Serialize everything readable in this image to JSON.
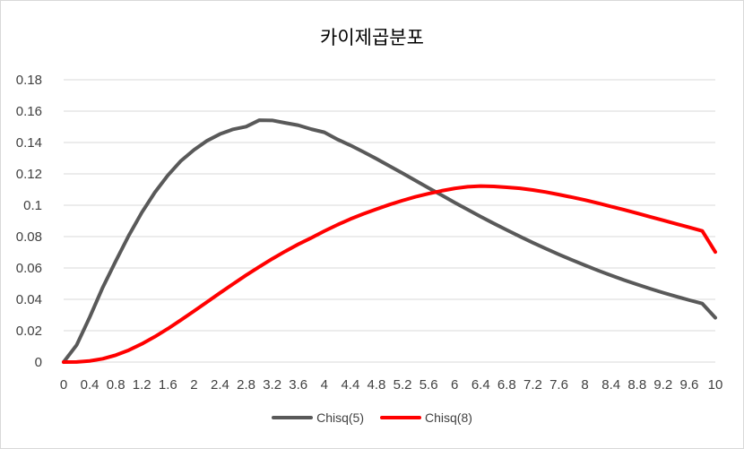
{
  "chart_data": {
    "type": "line",
    "title": "카이제곱분포",
    "xlabel": "",
    "ylabel": "",
    "x": [
      0,
      0.2,
      0.4,
      0.6,
      0.8,
      1,
      1.2,
      1.4,
      1.6,
      1.8,
      2,
      2.2,
      2.4,
      2.6,
      2.8,
      3,
      3.2,
      3.4,
      3.6,
      3.8,
      4,
      4.2,
      4.4,
      4.6,
      4.8,
      5,
      5.2,
      5.4,
      5.6,
      5.8,
      6,
      6.2,
      6.4,
      6.6,
      6.8,
      7,
      7.2,
      7.4,
      7.6,
      7.8,
      8,
      8.2,
      8.4,
      8.6,
      8.8,
      9,
      9.2,
      9.4,
      9.6,
      9.8,
      10
    ],
    "x_tick_labels": [
      "0",
      "0.4",
      "0.8",
      "1.2",
      "1.6",
      "2",
      "2.4",
      "2.8",
      "3.2",
      "3.6",
      "4",
      "4.4",
      "4.8",
      "5.2",
      "5.6",
      "6",
      "6.4",
      "6.8",
      "7.2",
      "7.6",
      "8",
      "8.4",
      "8.8",
      "9.2",
      "9.6",
      "10"
    ],
    "y_tick_labels": [
      "0",
      "0.02",
      "0.04",
      "0.06",
      "0.08",
      "0.1",
      "0.12",
      "0.14",
      "0.16",
      "0.18"
    ],
    "ylim": [
      0,
      0.18
    ],
    "grid": "horizontal",
    "legend_position": "bottom",
    "series": [
      {
        "name": "Chisq(5)",
        "color": "#595959",
        "values": [
          0,
          0.0109,
          0.0286,
          0.0476,
          0.0644,
          0.0807,
          0.0954,
          0.1082,
          0.1191,
          0.1283,
          0.1353,
          0.1411,
          0.1454,
          0.1484,
          0.1501,
          0.1542,
          0.1541,
          0.1525,
          0.151,
          0.1485,
          0.1465,
          0.142,
          0.1382,
          0.134,
          0.1296,
          0.125,
          0.1204,
          0.1157,
          0.111,
          0.1064,
          0.1017,
          0.0972,
          0.0927,
          0.0884,
          0.0842,
          0.0801,
          0.0761,
          0.0723,
          0.0686,
          0.0651,
          0.0617,
          0.0584,
          0.0553,
          0.0523,
          0.0495,
          0.0468,
          0.0442,
          0.0418,
          0.0395,
          0.0373,
          0.0283
        ]
      },
      {
        "name": "Chisq(8)",
        "color": "#ff0000",
        "values": [
          0,
          0.0001,
          0.0007,
          0.0021,
          0.0044,
          0.0076,
          0.0116,
          0.0162,
          0.0213,
          0.0268,
          0.0325,
          0.0383,
          0.0441,
          0.0498,
          0.0554,
          0.0607,
          0.0658,
          0.0706,
          0.0751,
          0.0792,
          0.0835,
          0.0875,
          0.0912,
          0.0945,
          0.0975,
          0.1004,
          0.103,
          0.1054,
          0.1074,
          0.1092,
          0.1107,
          0.1118,
          0.1122,
          0.112,
          0.1114,
          0.1108,
          0.1097,
          0.1084,
          0.1068,
          0.1051,
          0.1033,
          0.1013,
          0.0992,
          0.0971,
          0.0949,
          0.0926,
          0.0904,
          0.0881,
          0.0859,
          0.0836,
          0.0702
        ]
      }
    ]
  }
}
